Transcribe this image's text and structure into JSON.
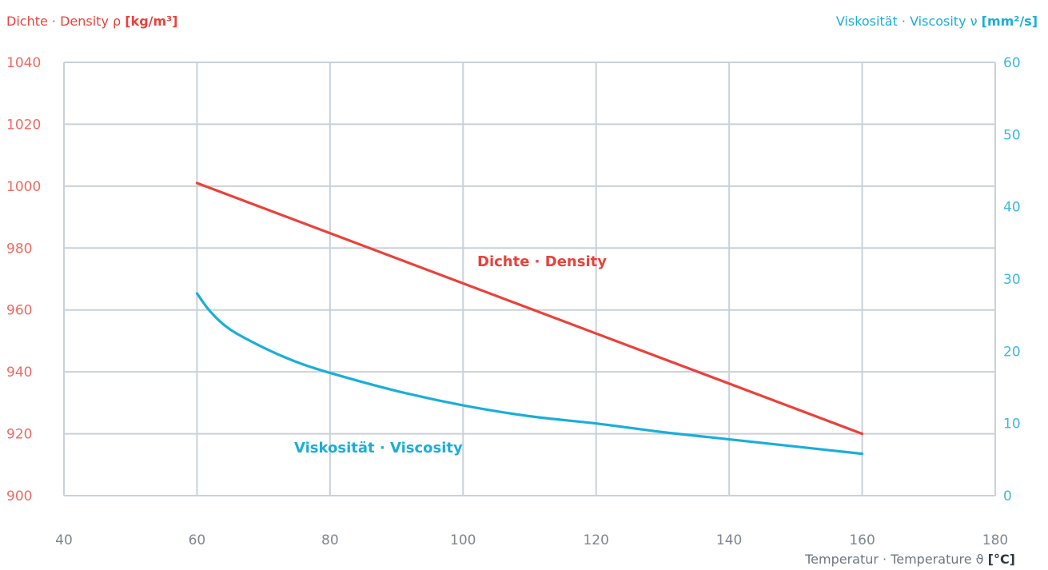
{
  "chart_data": {
    "type": "line",
    "left_axis": {
      "label_prefix": "Dichte · Density ρ ",
      "label_unit": "[kg/m³]",
      "ticks": [
        "1040",
        "1020",
        "1000",
        "980",
        "960",
        "940",
        "920",
        "900"
      ],
      "ylim": [
        900,
        1040
      ],
      "color": "#e8423c"
    },
    "right_axis": {
      "label_prefix": "Viskosität · Viscosity ν ",
      "label_unit": "[mm²/s]",
      "ticks": [
        "60",
        "50",
        "40",
        "30",
        "20",
        "10",
        "0"
      ],
      "ylim": [
        0,
        60
      ],
      "color": "#1aaed8"
    },
    "x_axis": {
      "label_prefix": "Temperatur · Temperature ϑ ",
      "label_unit": "[°C]",
      "ticks": [
        "40",
        "60",
        "80",
        "100",
        "120",
        "140",
        "160",
        "180"
      ],
      "xlim": [
        40,
        180
      ]
    },
    "grid": true,
    "series": [
      {
        "name": "Dichte · Density",
        "axis": "left",
        "color": "#e8423c",
        "x": [
          60,
          160
        ],
        "y": [
          1001,
          920
        ]
      },
      {
        "name": "Viskosität · Viscosity",
        "axis": "right",
        "color": "#1aaed8",
        "x": [
          60,
          62,
          65,
          70,
          75,
          80,
          90,
          100,
          110,
          120,
          130,
          140,
          150,
          160
        ],
        "y": [
          28,
          25.5,
          23,
          20.5,
          18.5,
          17,
          14.5,
          12.5,
          11,
          10,
          8.8,
          7.8,
          6.8,
          5.8
        ]
      }
    ]
  }
}
